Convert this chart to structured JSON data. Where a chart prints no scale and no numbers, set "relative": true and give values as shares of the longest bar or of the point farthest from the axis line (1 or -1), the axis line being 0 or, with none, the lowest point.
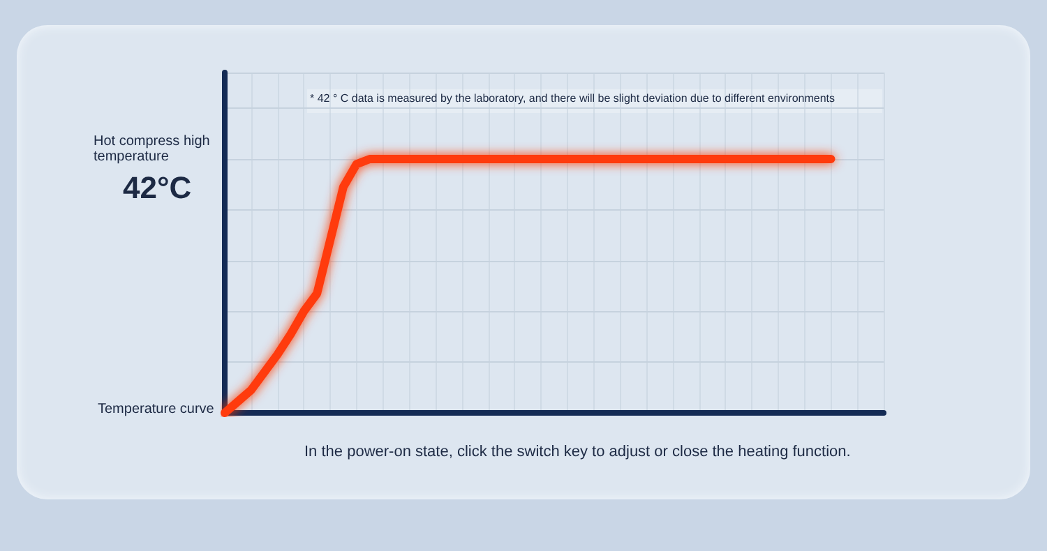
{
  "chart_data": {
    "type": "line",
    "relative": true,
    "categories": [
      null,
      null,
      null,
      null,
      null,
      null,
      null,
      null,
      null,
      null,
      null,
      null,
      null,
      null,
      null,
      null,
      null,
      null,
      null,
      null,
      null,
      null,
      null,
      null,
      null,
      null,
      null,
      null,
      null,
      null,
      null,
      null,
      null,
      null,
      null,
      null,
      null,
      null,
      null,
      null,
      null,
      null,
      null,
      null,
      null,
      null,
      null,
      null,
      null,
      null,
      null
    ],
    "series": [
      {
        "color": "#ff3a10",
        "values": [
          0,
          0.045,
          0.09,
          0.16,
          0.23,
          0.31,
          0.4,
          0.47,
          0.68,
          0.89,
          0.98,
          1,
          1,
          1,
          1,
          1,
          1,
          1,
          1,
          1,
          1,
          1,
          1,
          1,
          1,
          1,
          1,
          1,
          1,
          1,
          1,
          1,
          1,
          1,
          1,
          1,
          1,
          1,
          1,
          1,
          1,
          1,
          1,
          1,
          1,
          1,
          1,
          null,
          null,
          null,
          null
        ]
      }
    ],
    "annotations": [
      "* 42 ° C data is measured by the laboratory, and there will be slight deviation due to different environments",
      "Hot compress high temperature",
      "42°C",
      "Temperature curve",
      "In the power-on state, click the switch key to adjust or close the heating function."
    ],
    "grid": true,
    "marker": "none",
    "line_style": "solid"
  }
}
